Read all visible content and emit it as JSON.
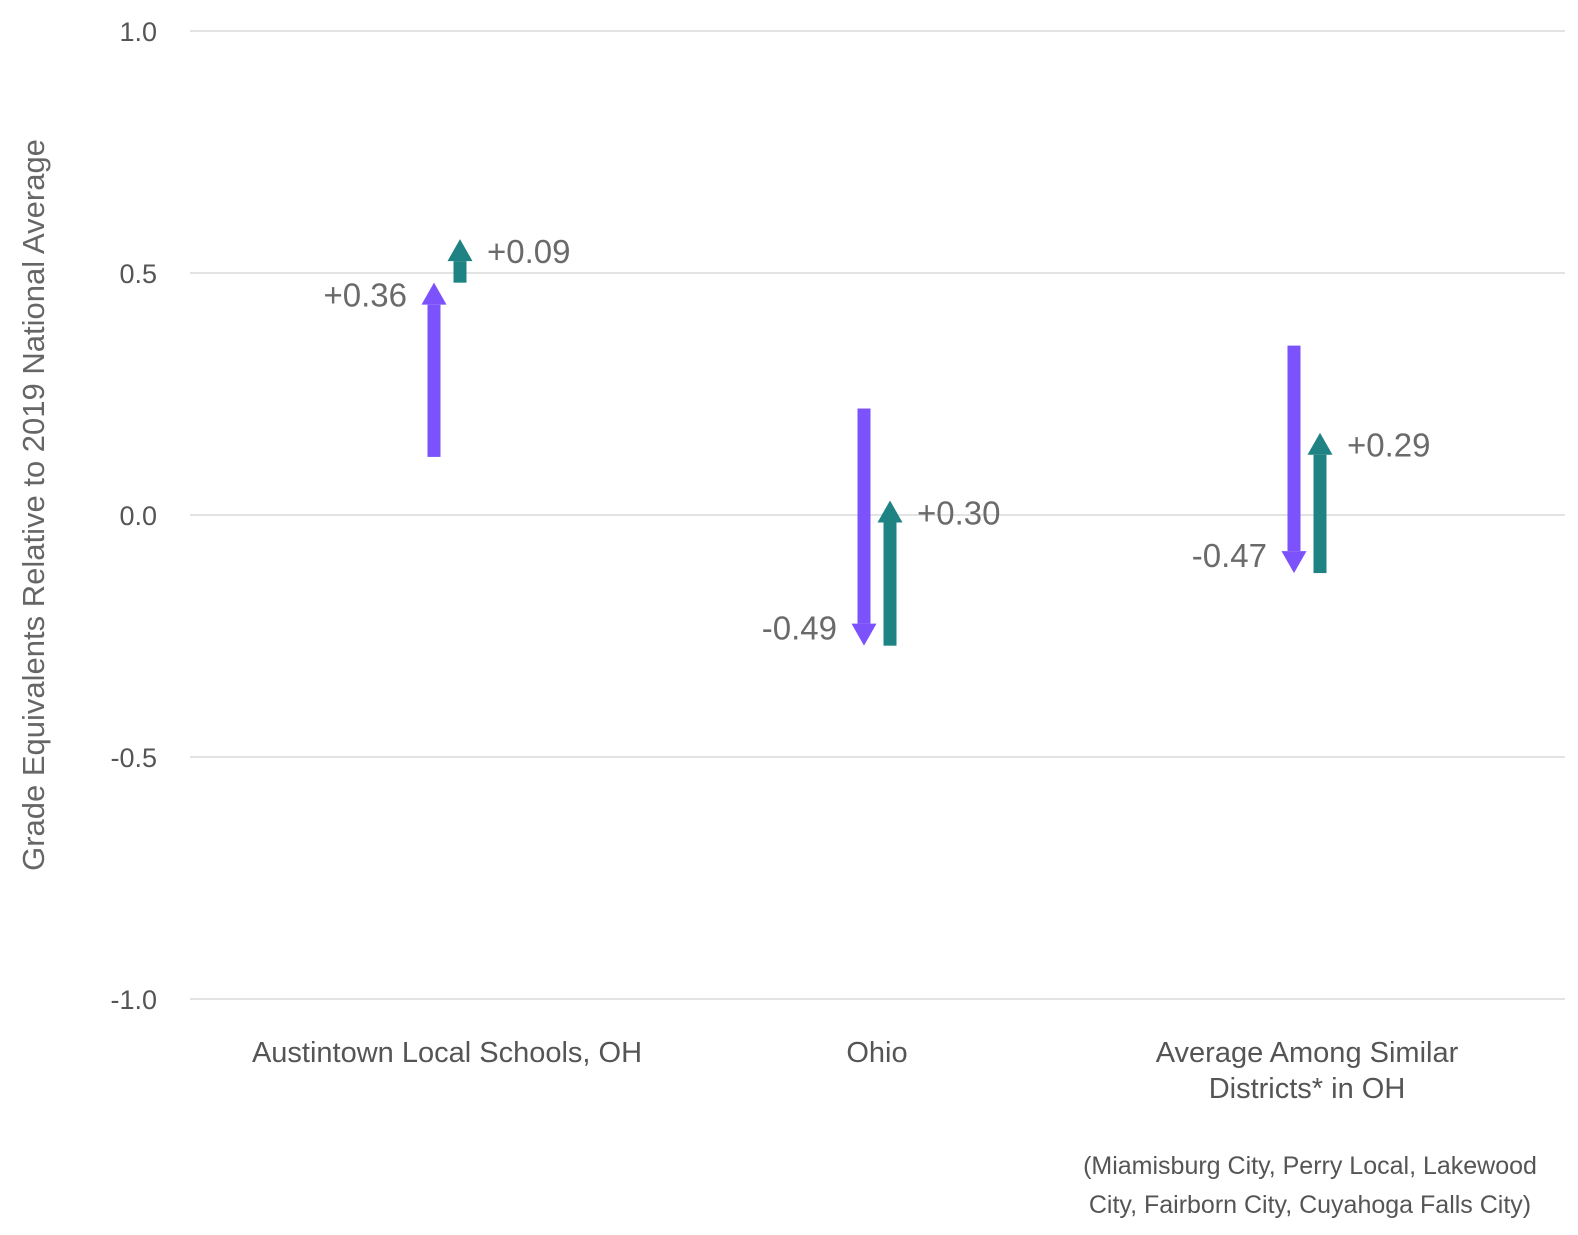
{
  "chart_data": {
    "type": "arrow",
    "title": "",
    "ylabel": "Grade Equivalents Relative to 2019 National Average",
    "xlabel": "",
    "ylim": [
      -1.0,
      1.0
    ],
    "yticks": [
      1.0,
      0.5,
      0.0,
      -0.5,
      -1.0
    ],
    "ytick_labels": [
      "1.0",
      "0.5",
      "0.0",
      "-0.5",
      "-1.0"
    ],
    "grid": true,
    "categories": [
      {
        "lines": [
          "Austintown Local Schools, OH"
        ]
      },
      {
        "lines": [
          "Ohio"
        ]
      },
      {
        "lines": [
          "Average Among Similar",
          "Districts* in OH"
        ]
      }
    ],
    "footnote_lines": [
      "(Miamisburg City, Perry Local, Lakewood",
      "City, Fairborn City, Cuyahoga Falls City)"
    ],
    "series": [
      {
        "color": "#7B52FB",
        "values": [
          {
            "start": 0.12,
            "end": 0.48,
            "label": "+0.36"
          },
          {
            "start": 0.22,
            "end": -0.27,
            "label": "-0.49"
          },
          {
            "start": 0.35,
            "end": -0.12,
            "label": "-0.47"
          }
        ]
      },
      {
        "color": "#1F8383",
        "values": [
          {
            "start": 0.48,
            "end": 0.57,
            "label": "+0.09"
          },
          {
            "start": -0.27,
            "end": 0.03,
            "label": "+0.30"
          },
          {
            "start": -0.12,
            "end": 0.17,
            "label": "+0.29"
          }
        ]
      }
    ]
  }
}
